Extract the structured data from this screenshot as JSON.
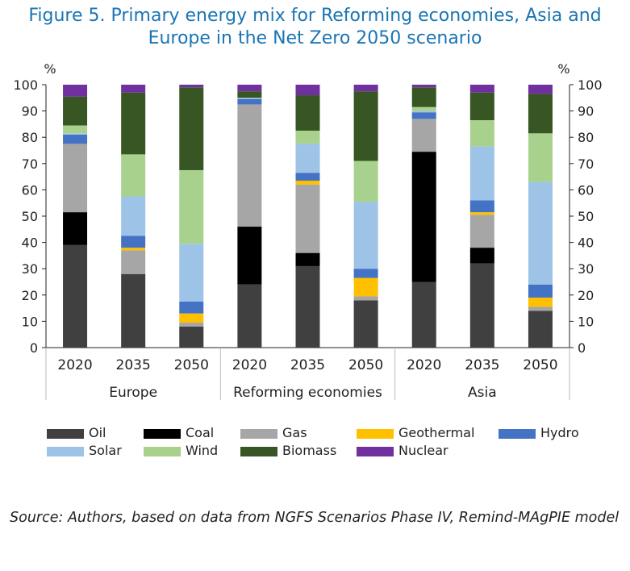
{
  "title_line1": "Figure 5. Primary energy mix for Reforming economies, Asia and",
  "title_line2": "Europe in the Net Zero 2050 scenario",
  "source": "Source: Authors, based on data from NGFS Scenarios Phase IV, Remind-MAgPIE model",
  "chart_data": {
    "type": "bar",
    "stacked": true,
    "title": "Figure 5. Primary energy mix for Reforming economies, Asia and Europe in the Net Zero 2050 scenario",
    "ylabel_left": "%",
    "ylabel_right": "%",
    "ylim": [
      0,
      100
    ],
    "yticks": [
      0,
      10,
      20,
      30,
      40,
      50,
      60,
      70,
      80,
      90,
      100
    ],
    "groups": [
      "Europe",
      "Reforming economies",
      "Asia"
    ],
    "categories": [
      "2020",
      "2035",
      "2050",
      "2020",
      "2035",
      "2050",
      "2020",
      "2035",
      "2050"
    ],
    "category_groups": [
      0,
      0,
      0,
      1,
      1,
      1,
      2,
      2,
      2
    ],
    "series": [
      {
        "name": "Oil",
        "color": "#404040",
        "values": [
          39,
          28,
          8,
          24,
          31,
          18,
          25,
          32,
          14
        ]
      },
      {
        "name": "Coal",
        "color": "#000000",
        "values": [
          12.5,
          0,
          0,
          22,
          5,
          0,
          49.5,
          6,
          0
        ]
      },
      {
        "name": "Gas",
        "color": "#a6a6a6",
        "values": [
          26,
          9,
          1.5,
          46.5,
          26,
          1.5,
          12.5,
          12.5,
          1.5
        ]
      },
      {
        "name": "Geothermal",
        "color": "#ffc000",
        "values": [
          0,
          1,
          3.5,
          0,
          1.5,
          7,
          0,
          1,
          3.5
        ]
      },
      {
        "name": "Hydro",
        "color": "#4472c4",
        "values": [
          3.5,
          4.5,
          4.5,
          2,
          3,
          3.5,
          2.5,
          4.5,
          5
        ]
      },
      {
        "name": "Solar",
        "color": "#9dc3e6",
        "values": [
          0.5,
          15,
          22,
          0.5,
          11,
          25.5,
          0.5,
          20.5,
          39
        ]
      },
      {
        "name": "Wind",
        "color": "#a9d18e",
        "values": [
          3,
          16,
          28,
          0,
          5,
          15.5,
          1.5,
          10,
          18.5
        ]
      },
      {
        "name": "Biomass",
        "color": "#375623",
        "values": [
          11,
          23.5,
          31.5,
          2.5,
          13.5,
          26.5,
          7.5,
          10.5,
          15
        ]
      },
      {
        "name": "Nuclear",
        "color": "#7030a0",
        "values": [
          4.5,
          3,
          1,
          2.5,
          4,
          2.5,
          1,
          3,
          3.5
        ]
      }
    ],
    "legend_position": "bottom"
  }
}
